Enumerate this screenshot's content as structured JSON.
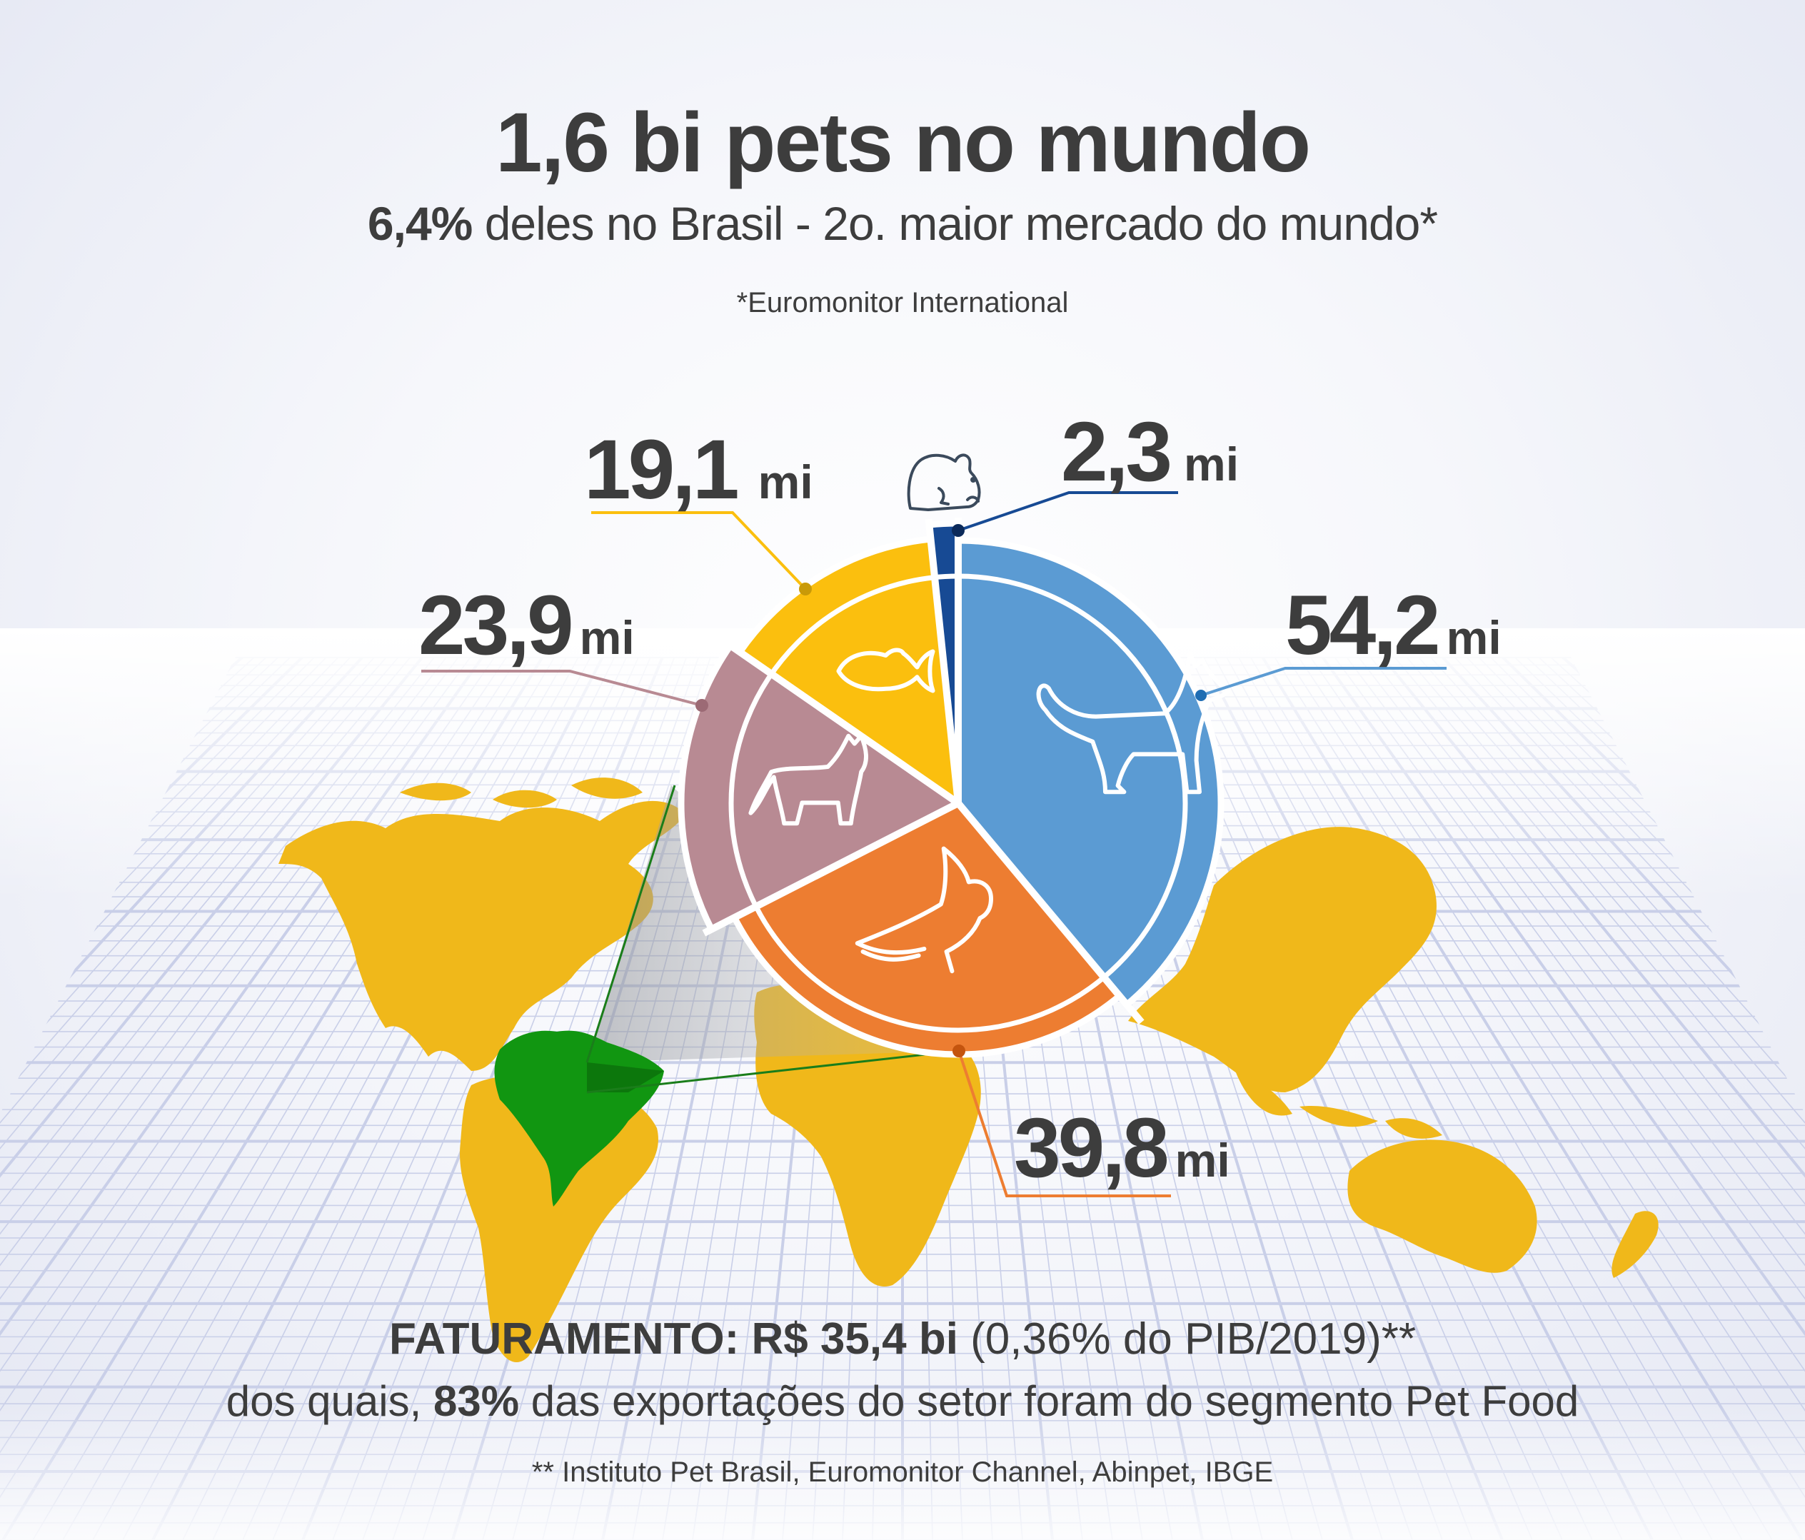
{
  "header": {
    "title": "1,6 bi pets no mundo",
    "subtitle_bold": "6,4%",
    "subtitle_rest": " deles no Brasil - 2o. maior mercado do mundo*",
    "source": "*Euromonitor International"
  },
  "footer": {
    "line1_bold": "FATURAMENTO: R$ 35,4 bi",
    "line1_rest": " (0,36% do PIB/2019)**",
    "line2_pre": "dos quais, ",
    "line2_bold": "83%",
    "line2_rest": " das exportações do setor foram do segmento Pet Food",
    "source": "** Instituto Pet Brasil, Euromonitor Channel, Abinpet, IBGE"
  },
  "colors": {
    "dogs": "#5B9BD3",
    "birds": "#ED7D31",
    "cats": "#B88A93",
    "fish": "#FBBF0E",
    "small_mammals": "#174A94",
    "map_land": "#F0B81A",
    "brazil": "#119611",
    "text": "#3D3D3D",
    "grid": "#C9CFE8"
  },
  "chart_data": {
    "type": "pie",
    "title": "1,6 bi pets no mundo",
    "subtitle": "6,4% deles no Brasil - 2o. maior mercado do mundo*",
    "unit": "mi",
    "categories": [
      "Cães",
      "Aves",
      "Gatos",
      "Peixes",
      "Pequenos mamíferos"
    ],
    "icons": [
      "dog-icon",
      "parrot-icon",
      "cat-icon",
      "fish-icon",
      "hamster-icon"
    ],
    "values": [
      54.2,
      39.8,
      23.9,
      19.1,
      2.3
    ],
    "labels": [
      "54,2",
      "39,8",
      "23,9",
      "19,1",
      "2,3"
    ],
    "legend": "none",
    "annotations": [
      "*Euromonitor International",
      "** Instituto Pet Brasil, Euromonitor Channel, Abinpet, IBGE"
    ]
  },
  "labels": {
    "dogs": {
      "value": "54,2",
      "unit": "mi"
    },
    "birds": {
      "value": "39,8",
      "unit": "mi"
    },
    "cats": {
      "value": "23,9",
      "unit": "mi"
    },
    "fish": {
      "value": "19,1",
      "unit": "mi"
    },
    "small": {
      "value": "2,3",
      "unit": "mi"
    }
  }
}
